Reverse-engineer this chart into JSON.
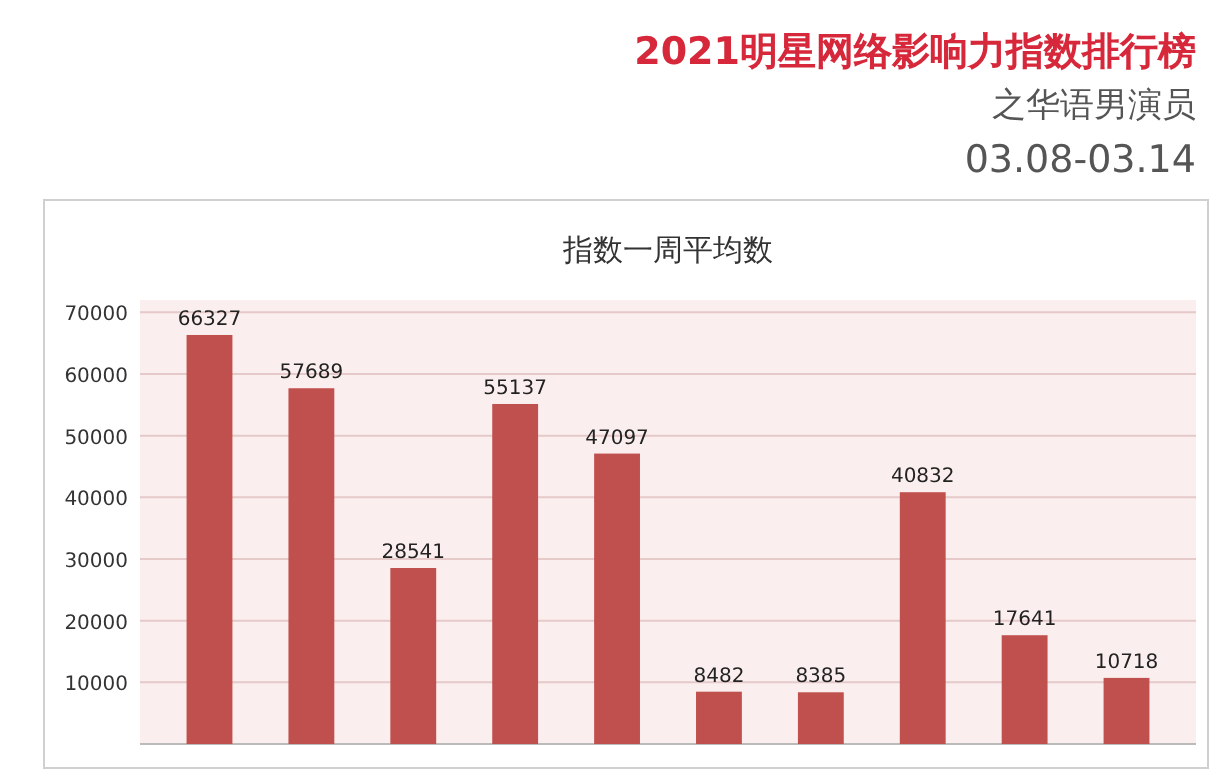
{
  "chart_data": {
    "type": "bar",
    "title": "指数一周平均数",
    "annotations": [
      "2021明星网络影响力指数排行榜",
      "之华语男演员",
      "03.08-03.14"
    ],
    "categories": [
      null,
      null,
      null,
      null,
      null,
      null,
      null,
      null,
      null,
      null
    ],
    "values": [
      66327,
      57689,
      28541,
      55137,
      47097,
      8482,
      8385,
      40832,
      17641,
      10718
    ],
    "color": "#c0504d",
    "data_labels": true,
    "ylim": [
      0,
      72000
    ],
    "yticks": [
      10000,
      20000,
      30000,
      40000,
      50000,
      60000,
      70000
    ],
    "grid": "y"
  }
}
